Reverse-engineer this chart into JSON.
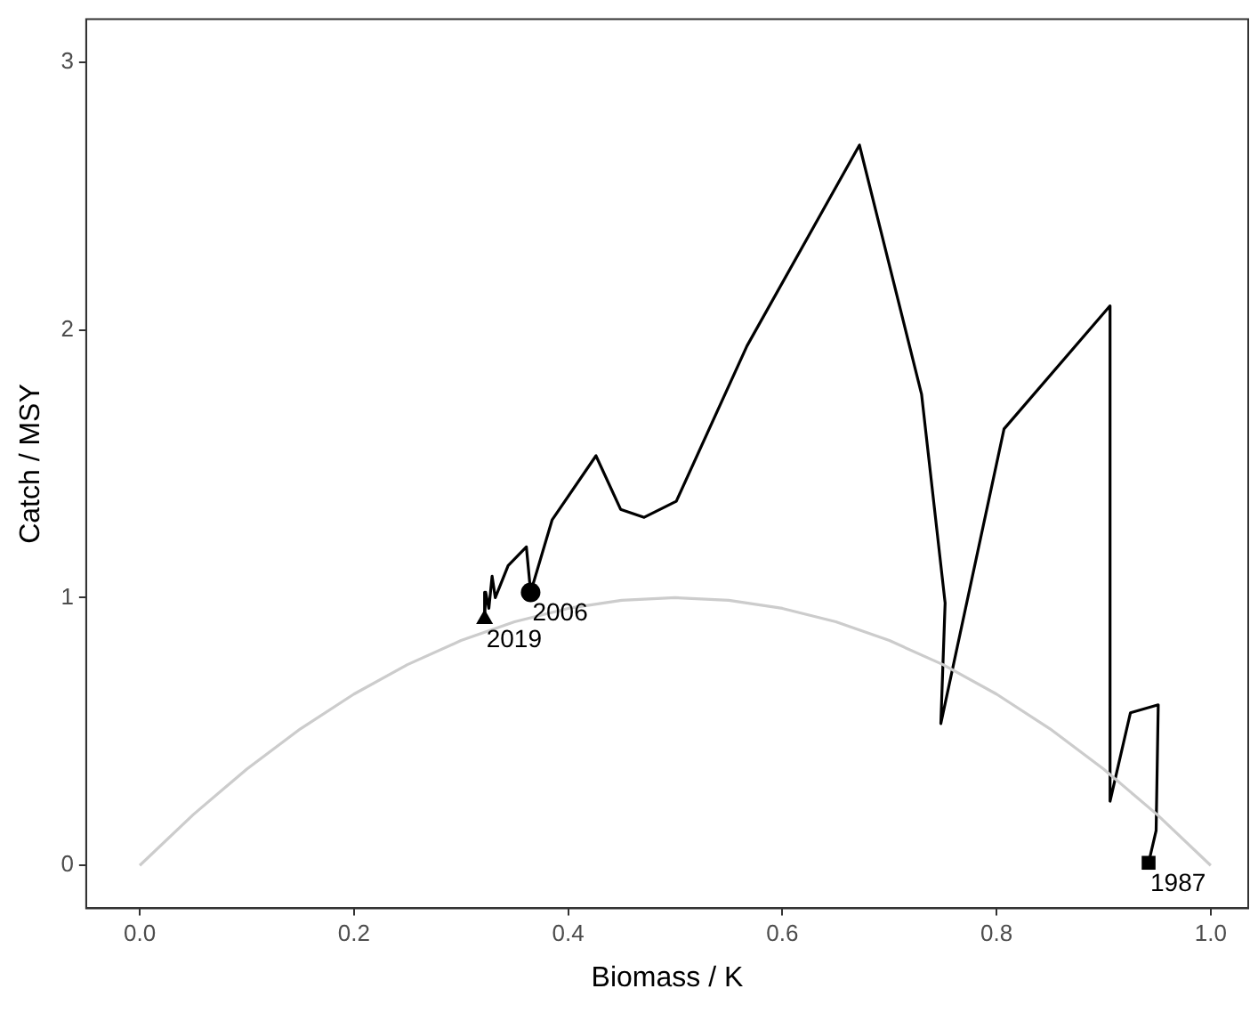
{
  "chart_data": {
    "type": "line",
    "xlabel": "Biomass / K",
    "ylabel": "Catch / MSY",
    "xlim": [
      -0.05,
      1.035
    ],
    "ylim": [
      -0.16,
      3.16
    ],
    "xticks": [
      {
        "value": 0,
        "label": "0.0"
      },
      0.2,
      0.4,
      0.6,
      0.8,
      {
        "value": 1,
        "label": "1.0"
      }
    ],
    "yticks": [
      0,
      1,
      2,
      3
    ],
    "grid": false,
    "legend": false,
    "line_style": "solid",
    "series": [
      {
        "color": "#cccccc",
        "marker": "none",
        "x": [
          0,
          0.05,
          0.1,
          0.15,
          0.2,
          0.25,
          0.3,
          0.35,
          0.4,
          0.45,
          0.5,
          0.55,
          0.6,
          0.65,
          0.7,
          0.75,
          0.8,
          0.85,
          0.9,
          0.95,
          1
        ],
        "values": [
          0,
          0.19,
          0.36,
          0.51,
          0.64,
          0.75,
          0.84,
          0.91,
          0.96,
          0.99,
          1,
          0.99,
          0.96,
          0.91,
          0.84,
          0.75,
          0.64,
          0.51,
          0.36,
          0.19,
          0
        ]
      },
      {
        "color": "#000000",
        "marker": "none",
        "x": [
          0.942,
          0.949,
          0.951,
          0.925,
          0.906,
          0.906,
          0.807,
          0.748,
          0.752,
          0.73,
          0.672,
          0.567,
          0.501,
          0.471,
          0.449,
          0.426,
          0.385,
          0.365,
          0.361,
          0.344,
          0.332,
          0.329,
          0.326,
          0.323,
          0.322
        ],
        "values": [
          0.01,
          0.13,
          0.6,
          0.57,
          0.24,
          2.09,
          1.63,
          0.53,
          0.98,
          1.76,
          2.69,
          1.94,
          1.36,
          1.3,
          1.33,
          1.53,
          1.29,
          1.02,
          1.19,
          1.12,
          1.0,
          1.08,
          0.96,
          1.02,
          0.92
        ]
      },
      {
        "type": "scatter",
        "color": "#000000",
        "marker": "square",
        "x": [
          0.942
        ],
        "values": [
          0.01
        ]
      },
      {
        "type": "scatter",
        "color": "#000000",
        "marker": "circle",
        "x": [
          0.365
        ],
        "values": [
          1.02
        ]
      },
      {
        "type": "scatter",
        "color": "#000000",
        "marker": "triangle",
        "x": [
          0.322
        ],
        "values": [
          0.92
        ]
      }
    ],
    "annotations": [
      {
        "text": "1987",
        "x": 0.942,
        "y": 0.01
      },
      {
        "text": "2006",
        "x": 0.365,
        "y": 1.02
      },
      {
        "text": "2019",
        "x": 0.322,
        "y": 0.92
      }
    ]
  }
}
